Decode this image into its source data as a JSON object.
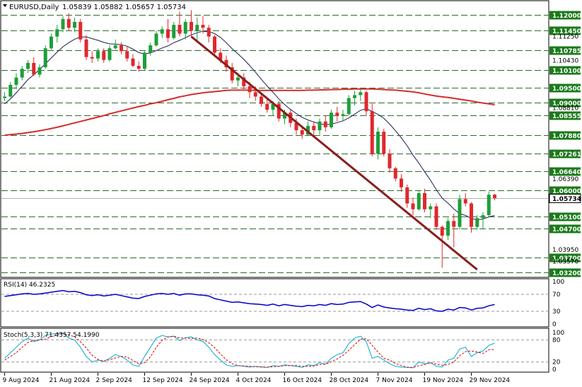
{
  "title": {
    "symbol_period": "EURUSD,Daily",
    "ohlc": "1.05839 1.05882 1.05657 1.05734"
  },
  "colors": {
    "bull": "#1e9e3a",
    "bear": "#e0282d",
    "sma_fast": "#1a1f4a",
    "sma_slow": "#d62c2c",
    "trendline": "#8b1e1e",
    "level_line": "#2f6b2f",
    "level_label_bg": "#1b7a1b",
    "rsi_line": "#0000cc",
    "stoch_main": "#00aacc",
    "stoch_signal": "#dd0000",
    "ref_line": "#9a9a9a",
    "current_price_bg": "#ffffff"
  },
  "chart_data": [
    {
      "type": "candlestick",
      "ylim": [
        1.0305,
        1.1245
      ],
      "current_price": 1.05734,
      "current_price_label": "1.05734",
      "level_lines": [
        1.12,
        1.1145,
        1.10785,
        1.101,
        1.095,
        1.09,
        1.08555,
        1.0788,
        1.07261,
        1.0664,
        1.06,
        1.051,
        1.047,
        1.037,
        1.032
      ],
      "level_labels": [
        "1.12000",
        "1.11450",
        "1.10785",
        "1.10100",
        "1.09500",
        "1.09000",
        "1.08555",
        "1.07880",
        "1.07261",
        "1.06640",
        "1.06000",
        "1.05100",
        "1.04700",
        "1.03700",
        "1.03200"
      ],
      "axis_ticks": [
        1.1125,
        1.1043,
        1.0881,
        1.0639,
        1.0397,
        1.0357
      ],
      "axis_tick_labels": [
        "1.11250",
        "1.10430",
        "1.08810",
        "1.06390",
        "1.03950",
        "1.03570"
      ],
      "x_labels": [
        "9 Aug 2024",
        "21 Aug 2024",
        "2 Sep 2024",
        "12 Sep 2024",
        "24 Sep 2024",
        "4 Oct 2024",
        "16 Oct 2024",
        "28 Oct 2024",
        "7 Nov 2024",
        "19 Nov 2024",
        "29 Nov 2024"
      ],
      "x_label_index": [
        0,
        8,
        16,
        24,
        32,
        40,
        48,
        56,
        64,
        72,
        80
      ],
      "candles": [
        [
          1.0915,
          1.0935,
          1.0905,
          1.092
        ],
        [
          1.092,
          1.097,
          1.0915,
          1.096
        ],
        [
          1.096,
          1.1,
          1.0945,
          1.0985
        ],
        [
          1.0985,
          1.1025,
          1.0975,
          1.1015
        ],
        [
          1.1015,
          1.1045,
          1.1,
          1.1035
        ],
        [
          1.1035,
          1.1055,
          1.099,
          1.0995
        ],
        [
          1.0995,
          1.103,
          1.0985,
          1.102
        ],
        [
          1.102,
          1.1095,
          1.1015,
          1.1085
        ],
        [
          1.1085,
          1.1135,
          1.108,
          1.1125
        ],
        [
          1.1125,
          1.1165,
          1.1105,
          1.115
        ],
        [
          1.115,
          1.1195,
          1.114,
          1.1185
        ],
        [
          1.1185,
          1.1205,
          1.1145,
          1.1155
        ],
        [
          1.1155,
          1.119,
          1.114,
          1.1175
        ],
        [
          1.1175,
          1.1185,
          1.1105,
          1.1115
        ],
        [
          1.1115,
          1.113,
          1.1045,
          1.1055
        ],
        [
          1.1055,
          1.1075,
          1.1035,
          1.105
        ],
        [
          1.105,
          1.1085,
          1.104,
          1.1075
        ],
        [
          1.1075,
          1.1085,
          1.1035,
          1.1045
        ],
        [
          1.1045,
          1.1095,
          1.104,
          1.1085
        ],
        [
          1.1085,
          1.1115,
          1.108,
          1.1095
        ],
        [
          1.1095,
          1.1105,
          1.1065,
          1.1075
        ],
        [
          1.1075,
          1.109,
          1.104,
          1.105
        ],
        [
          1.105,
          1.1065,
          1.102,
          1.1025
        ],
        [
          1.1025,
          1.104,
          1.1005,
          1.1015
        ],
        [
          1.1015,
          1.1075,
          1.101,
          1.107
        ],
        [
          1.107,
          1.1105,
          1.106,
          1.1095
        ],
        [
          1.1095,
          1.1145,
          1.109,
          1.1135
        ],
        [
          1.1135,
          1.116,
          1.112,
          1.115
        ],
        [
          1.115,
          1.1185,
          1.1105,
          1.112
        ],
        [
          1.112,
          1.1175,
          1.1115,
          1.1165
        ],
        [
          1.1165,
          1.121,
          1.1125,
          1.1135
        ],
        [
          1.1135,
          1.1185,
          1.1115,
          1.1175
        ],
        [
          1.1175,
          1.1215,
          1.1125,
          1.1145
        ],
        [
          1.1145,
          1.119,
          1.1105,
          1.1165
        ],
        [
          1.1165,
          1.1195,
          1.1135,
          1.1155
        ],
        [
          1.1155,
          1.1165,
          1.1105,
          1.1125
        ],
        [
          1.1125,
          1.113,
          1.1055,
          1.107
        ],
        [
          1.107,
          1.1085,
          1.1035,
          1.1045
        ],
        [
          1.1045,
          1.106,
          1.1005,
          1.102
        ],
        [
          1.102,
          1.1035,
          1.0965,
          1.0975
        ],
        [
          1.0975,
          1.1,
          1.0955,
          1.0985
        ],
        [
          1.0985,
          1.1,
          1.0945,
          1.0955
        ],
        [
          1.0955,
          1.097,
          1.0915,
          1.0935
        ],
        [
          1.0935,
          1.0955,
          1.0905,
          1.092
        ],
        [
          1.092,
          1.0935,
          1.0885,
          1.0895
        ],
        [
          1.0895,
          1.091,
          1.0865,
          1.0875
        ],
        [
          1.0875,
          1.0905,
          1.0855,
          1.0895
        ],
        [
          1.0895,
          1.0905,
          1.0835,
          1.0845
        ],
        [
          1.0845,
          1.0875,
          1.0825,
          1.0865
        ],
        [
          1.0865,
          1.0875,
          1.0815,
          1.083
        ],
        [
          1.083,
          1.0845,
          1.079,
          1.0805
        ],
        [
          1.0805,
          1.0815,
          1.0775,
          1.079
        ],
        [
          1.079,
          1.0835,
          1.0785,
          1.082
        ],
        [
          1.082,
          1.0835,
          1.079,
          1.0805
        ],
        [
          1.0805,
          1.0845,
          1.079,
          1.0835
        ],
        [
          1.0835,
          1.0855,
          1.08,
          1.0815
        ],
        [
          1.0815,
          1.0875,
          1.081,
          1.0865
        ],
        [
          1.0865,
          1.0885,
          1.0835,
          1.0855
        ],
        [
          1.0855,
          1.0875,
          1.0835,
          1.086
        ],
        [
          1.086,
          1.0925,
          1.0855,
          1.0915
        ],
        [
          1.0915,
          1.094,
          1.089,
          1.0925
        ],
        [
          1.0925,
          1.0945,
          1.0905,
          1.0935
        ],
        [
          1.0935,
          1.094,
          1.0855,
          1.087
        ],
        [
          1.087,
          1.0895,
          1.0715,
          1.0725
        ],
        [
          1.0725,
          1.0815,
          1.0705,
          1.08
        ],
        [
          1.08,
          1.081,
          1.0715,
          1.0725
        ],
        [
          1.0725,
          1.074,
          1.066,
          1.0675
        ],
        [
          1.0675,
          1.068,
          1.063,
          1.064
        ],
        [
          1.064,
          1.0655,
          1.0595,
          1.061
        ],
        [
          1.061,
          1.062,
          1.054,
          1.0555
        ],
        [
          1.0555,
          1.0575,
          1.0515,
          1.0535
        ],
        [
          1.0535,
          1.06,
          1.053,
          1.059
        ],
        [
          1.059,
          1.0605,
          1.0525,
          1.0535
        ],
        [
          1.0535,
          1.0555,
          1.0505,
          1.0545
        ],
        [
          1.0545,
          1.0555,
          1.0465,
          1.0475
        ],
        [
          1.0475,
          1.048,
          1.0335,
          1.0445
        ],
        [
          1.0445,
          1.0505,
          1.043,
          1.0495
        ],
        [
          1.0495,
          1.052,
          1.0405,
          1.0475
        ],
        [
          1.0475,
          1.0585,
          1.0465,
          1.057
        ],
        [
          1.057,
          1.059,
          1.0545,
          1.0555
        ],
        [
          1.0555,
          1.056,
          1.0455,
          1.0475
        ],
        [
          1.0475,
          1.0515,
          1.0465,
          1.0505
        ],
        [
          1.0505,
          1.0525,
          1.047,
          1.0515
        ],
        [
          1.0515,
          1.0595,
          1.051,
          1.0585
        ],
        [
          1.0585,
          1.0588,
          1.05657,
          1.05734
        ]
      ],
      "sma_fast": [
        1.0895,
        1.0912,
        1.0933,
        1.0955,
        1.0978,
        1.0995,
        1.1012,
        1.1032,
        1.1052,
        1.1072,
        1.109,
        1.1104,
        1.1116,
        1.1123,
        1.1124,
        1.1118,
        1.1112,
        1.1105,
        1.11,
        1.1099,
        1.1097,
        1.1092,
        1.1082,
        1.107,
        1.1066,
        1.1069,
        1.1077,
        1.1086,
        1.1093,
        1.1104,
        1.1112,
        1.1121,
        1.1131,
        1.1138,
        1.1143,
        1.1142,
        1.1135,
        1.1122,
        1.1104,
        1.1083,
        1.1066,
        1.1047,
        1.1026,
        1.1003,
        1.0979,
        1.0956,
        1.0935,
        1.0912,
        1.0893,
        1.0876,
        1.0862,
        1.0849,
        1.084,
        1.0833,
        1.0827,
        1.0824,
        1.0826,
        1.0831,
        1.0837,
        1.0847,
        1.086,
        1.0873,
        1.0879,
        1.0869,
        1.0859,
        1.0846,
        1.0826,
        1.0803,
        1.0779,
        1.0752,
        1.072,
        1.0693,
        1.0663,
        1.0634,
        1.0602,
        1.0573,
        1.0556,
        1.0536,
        1.052,
        1.0514,
        1.0504,
        1.0499,
        1.0502,
        1.0509,
        1.0514
      ],
      "sma_slow": [
        1.0788,
        1.079,
        1.0792,
        1.0794,
        1.0797,
        1.08,
        1.0803,
        1.0807,
        1.0811,
        1.0815,
        1.082,
        1.0825,
        1.083,
        1.0835,
        1.084,
        1.0845,
        1.085,
        1.0855,
        1.0861,
        1.0866,
        1.0871,
        1.0876,
        1.0881,
        1.0886,
        1.089,
        1.0895,
        1.0899,
        1.0904,
        1.0909,
        1.0914,
        1.0919,
        1.0923,
        1.0927,
        1.093,
        1.0933,
        1.0935,
        1.0937,
        1.0939,
        1.0941,
        1.0942,
        1.0942,
        1.0942,
        1.0942,
        1.0941,
        1.0941,
        1.0941,
        1.0941,
        1.0941,
        1.0941,
        1.0941,
        1.0941,
        1.0941,
        1.0942,
        1.0942,
        1.0943,
        1.0943,
        1.0944,
        1.0944,
        1.0945,
        1.0945,
        1.0946,
        1.0946,
        1.0946,
        1.0946,
        1.0945,
        1.0944,
        1.0943,
        1.0942,
        1.094,
        1.0938,
        1.0936,
        1.0933,
        1.0929,
        1.0925,
        1.0922,
        1.0919,
        1.0917,
        1.0914,
        1.0911,
        1.0908,
        1.0905,
        1.0901,
        1.0898,
        1.0895,
        1.0892
      ],
      "trendline": {
        "from": [
          32,
          1.1125
        ],
        "to": [
          81,
          1.0329
        ]
      }
    },
    {
      "type": "line",
      "title": "RSI(14) 46.2325",
      "ylim": [
        0,
        100
      ],
      "ticks": [
        100,
        70,
        30,
        0
      ],
      "levels": [
        70,
        30
      ],
      "series": [
        {
          "values": [
            65,
            67,
            69,
            71,
            72,
            70,
            71,
            73,
            75,
            77,
            79,
            76,
            77,
            74,
            69,
            67,
            69,
            66,
            68,
            70,
            67,
            64,
            61,
            60,
            65,
            68,
            71,
            72,
            70,
            72,
            68,
            71,
            71,
            69,
            68,
            66,
            60,
            57,
            54,
            51,
            52,
            50,
            48,
            47,
            46,
            44,
            47,
            43,
            46,
            44,
            42,
            41,
            44,
            43,
            46,
            44,
            48,
            46,
            47,
            51,
            52,
            53,
            47,
            39,
            45,
            40,
            38,
            36,
            35,
            33,
            32,
            37,
            34,
            36,
            31,
            30,
            35,
            33,
            39,
            38,
            33,
            37,
            38,
            43,
            46
          ]
        }
      ]
    },
    {
      "type": "line",
      "title": "Stoch(5,3,3) 71.4357 54.1990",
      "ylim": [
        0,
        100
      ],
      "ticks": [
        100,
        80,
        20,
        0
      ],
      "levels": [
        80,
        20
      ],
      "series": [
        {
          "values": [
            30,
            45,
            60,
            75,
            85,
            75,
            80,
            92,
            96,
            98,
            98,
            85,
            80,
            60,
            35,
            20,
            25,
            22,
            30,
            40,
            35,
            25,
            12,
            8,
            35,
            60,
            85,
            92,
            88,
            90,
            78,
            86,
            88,
            80,
            76,
            60,
            40,
            25,
            12,
            8,
            10,
            8,
            6,
            8,
            6,
            5,
            10,
            8,
            12,
            10,
            8,
            5,
            12,
            10,
            18,
            14,
            30,
            40,
            45,
            70,
            85,
            90,
            75,
            30,
            35,
            25,
            15,
            8,
            6,
            5,
            4,
            20,
            15,
            18,
            8,
            6,
            25,
            30,
            55,
            60,
            35,
            45,
            50,
            65,
            71
          ]
        },
        {
          "values": [
            25,
            35,
            45,
            60,
            73,
            78,
            80,
            82,
            89,
            95,
            97,
            94,
            88,
            75,
            58,
            38,
            27,
            22,
            26,
            31,
            35,
            33,
            24,
            15,
            18,
            34,
            60,
            79,
            88,
            90,
            85,
            85,
            84,
            85,
            81,
            72,
            59,
            42,
            26,
            15,
            10,
            9,
            8,
            7,
            7,
            6,
            7,
            8,
            10,
            10,
            10,
            8,
            8,
            9,
            13,
            14,
            21,
            28,
            38,
            52,
            67,
            82,
            83,
            65,
            47,
            30,
            25,
            16,
            10,
            6,
            5,
            10,
            13,
            18,
            14,
            11,
            13,
            20,
            37,
            48,
            50,
            47,
            43,
            53,
            54
          ]
        }
      ]
    }
  ]
}
